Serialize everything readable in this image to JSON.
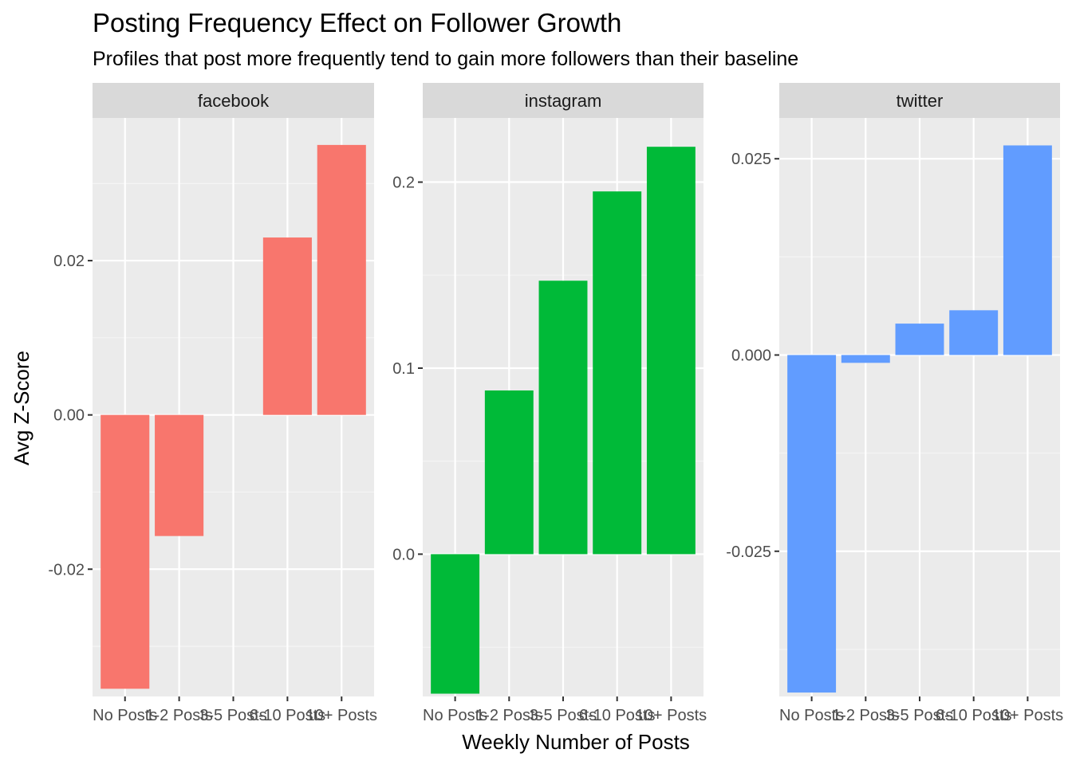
{
  "chart_data": {
    "type": "bar",
    "title": "Posting Frequency Effect on Follower Growth",
    "subtitle": "Profiles that post more frequently tend to gain more followers than their baseline",
    "xlabel": "Weekly Number of Posts",
    "ylabel": "Avg Z-Score",
    "grid": true,
    "legend": "none",
    "categories": [
      "No Posts",
      "1-2 Posts",
      "3-5 Posts",
      "6-10 Posts",
      "10+ Posts"
    ],
    "panels": [
      {
        "name": "facebook",
        "color": "#F8766D",
        "values": [
          -0.0355,
          -0.0157,
          0.0,
          0.023,
          0.035
        ],
        "ylim": [
          -0.0365,
          0.0385
        ],
        "yticks": [
          -0.02,
          0.0,
          0.02
        ],
        "ytick_labels": [
          "-0.02",
          "0.00",
          "0.02"
        ],
        "yminor": [
          -0.03,
          -0.01,
          0.01,
          0.03
        ]
      },
      {
        "name": "instagram",
        "color": "#00BA38",
        "values": [
          -0.075,
          0.088,
          0.147,
          0.195,
          0.219
        ],
        "ylim": [
          -0.0765,
          0.2345
        ],
        "yticks": [
          0.0,
          0.1,
          0.2
        ],
        "ytick_labels": [
          "0.0",
          "0.1",
          "0.2"
        ],
        "yminor": [
          -0.05,
          0.05,
          0.15
        ]
      },
      {
        "name": "twitter",
        "color": "#619CFF",
        "values": [
          -0.043,
          -0.001,
          0.004,
          0.0057,
          0.0267
        ],
        "ylim": [
          -0.0435,
          0.0302
        ],
        "yticks": [
          -0.025,
          0.0,
          0.025
        ],
        "ytick_labels": [
          "-0.025",
          "0.000",
          "0.025"
        ],
        "yminor": [
          -0.0375,
          -0.0125,
          0.0125
        ]
      }
    ]
  }
}
